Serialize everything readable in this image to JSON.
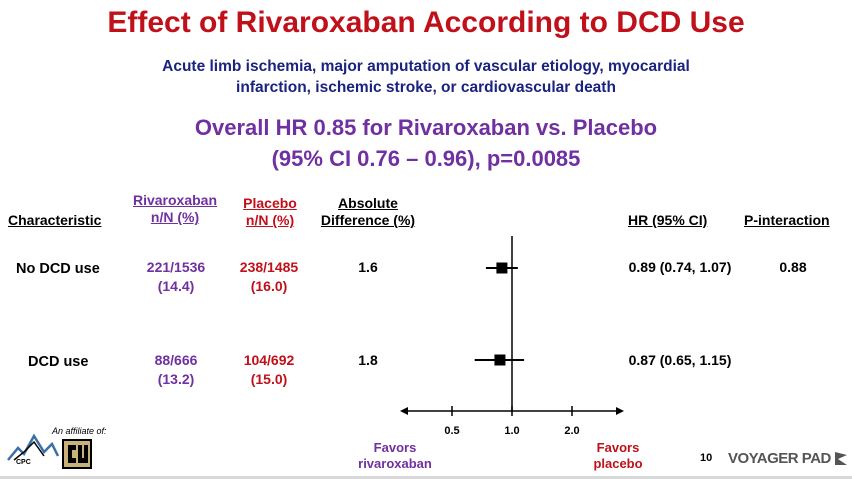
{
  "title": "Effect of Rivaroxaban According to DCD Use",
  "subtitle_line1": "Acute limb ischemia, major amputation of vascular etiology, myocardial",
  "subtitle_line2": "infarction, ischemic stroke, or cardiovascular death",
  "overall_line1": "Overall HR 0.85 for Rivaroxaban vs. Placebo",
  "overall_line2": "(95% CI 0.76 – 0.96), p=0.0085",
  "headers": {
    "characteristic": "Characteristic",
    "riva_line1": "Rivaroxaban",
    "riva_line2": "n/N (%)",
    "placebo_line1": "Placebo",
    "placebo_line2": "n/N (%)",
    "absdiff_line1": "Absolute",
    "absdiff_line2": "Difference (%)",
    "hr": "HR (95% CI)",
    "pint": "P-interaction"
  },
  "rows": [
    {
      "label": "No DCD use",
      "riva_n": "221/1536",
      "riva_pct": "(14.4)",
      "placebo_n": "238/1485",
      "placebo_pct": "(16.0)",
      "absdiff": "1.6",
      "hr_text": "0.89 (0.74, 1.07)",
      "pint": "0.88"
    },
    {
      "label": "DCD use",
      "riva_n": "88/666",
      "riva_pct": "(13.2)",
      "placebo_n": "104/692",
      "placebo_pct": "(15.0)",
      "absdiff": "1.8",
      "hr_text": "0.87 (0.65, 1.15)",
      "pint": ""
    }
  ],
  "favors_left_line1": "Favors",
  "favors_left_line2": "rivaroxaban",
  "favors_right_line1": "Favors",
  "favors_right_line2": "placebo",
  "affiliate_text": "An affiliate of:",
  "cpc_logo_text": "CPC",
  "slide_number": "10",
  "brand_text": "VOYAGER PAD",
  "colors": {
    "title": "#c0101a",
    "subtitle": "#1a237e",
    "riva": "#7030a0",
    "placebo": "#c0101a"
  },
  "chart_data": {
    "type": "forest",
    "x_scale": "log",
    "reference_line": 1.0,
    "xticks": [
      0.5,
      1.0,
      2.0
    ],
    "xlim": [
      0.4,
      2.5
    ],
    "points": [
      {
        "label": "No DCD use",
        "hr": 0.89,
        "lo": 0.74,
        "hi": 1.07
      },
      {
        "label": "DCD use",
        "hr": 0.87,
        "lo": 0.65,
        "hi": 1.15
      }
    ]
  }
}
